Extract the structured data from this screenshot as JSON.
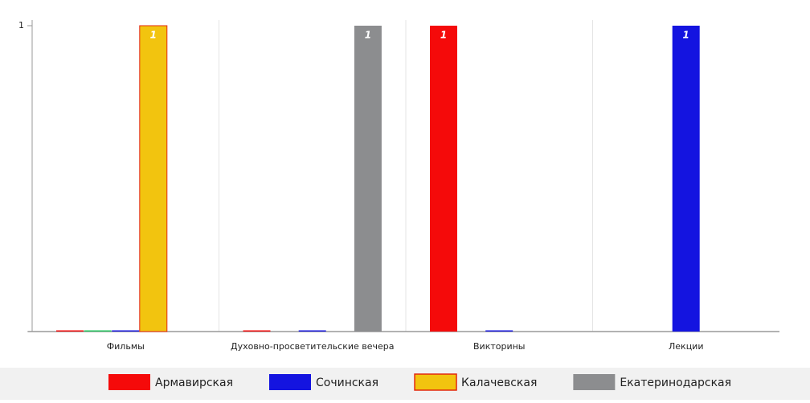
{
  "chart_data": {
    "type": "bar",
    "categories": [
      "Фильмы",
      "Духовно-просветительские вечера",
      "Викторины",
      "Лекции"
    ],
    "series": [
      {
        "name": "Армавирская",
        "color": "#f50a0a",
        "values": [
          0,
          0,
          1,
          null
        ]
      },
      {
        "color": "#22c55e",
        "values": [
          0,
          null,
          null,
          null
        ]
      },
      {
        "name": "Сочинская",
        "color": "#1414e0",
        "values": [
          0,
          0,
          0,
          1
        ]
      },
      {
        "name": "Калачевская",
        "color": "#f2c40f",
        "border": "#e3280f",
        "values": [
          1,
          null,
          null,
          null
        ]
      },
      {
        "name": "Екатеринодарская",
        "color": "#8c8d8f",
        "values": [
          null,
          1,
          null,
          null
        ]
      }
    ],
    "ylim": [
      0,
      1
    ],
    "yticks": [
      1
    ]
  }
}
